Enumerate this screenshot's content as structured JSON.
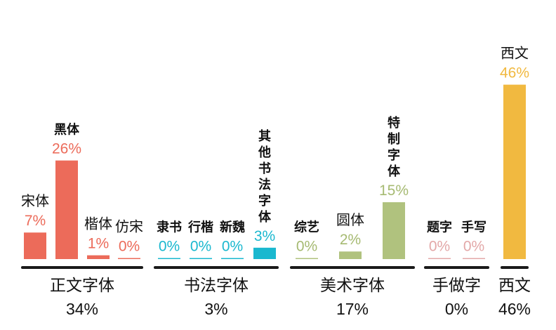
{
  "chart_data": {
    "type": "bar",
    "unit": "%",
    "groups": [
      {
        "name": "正文字体",
        "total": "34%",
        "color": "#ec6b5a",
        "label_color": "#ec6b5a",
        "items": [
          {
            "name": "宋体",
            "value": 7,
            "label": "7%"
          },
          {
            "name": "黑体",
            "value": 26,
            "label": "26%"
          },
          {
            "name": "楷体",
            "value": 1,
            "label": "1%"
          },
          {
            "name": "仿宋",
            "value": 0,
            "label": "0%"
          }
        ]
      },
      {
        "name": "书法字体",
        "total": "3%",
        "color": "#1ab8cf",
        "label_color": "#1ab8cf",
        "items": [
          {
            "name": "隶书",
            "value": 0,
            "label": "0%"
          },
          {
            "name": "行楷",
            "value": 0,
            "label": "0%"
          },
          {
            "name": "新魏",
            "value": 0,
            "label": "0%"
          },
          {
            "name": "其他书法字体",
            "value": 3,
            "label": "3%"
          }
        ]
      },
      {
        "name": "美术字体",
        "total": "17%",
        "color": "#b0c27e",
        "label_color": "#a6ba72",
        "items": [
          {
            "name": "综艺",
            "value": 0,
            "label": "0%"
          },
          {
            "name": "圆体",
            "value": 2,
            "label": "2%"
          },
          {
            "name": "特制字体",
            "value": 15,
            "label": "15%"
          }
        ]
      },
      {
        "name": "手做字",
        "total": "0%",
        "color": "#e3a8a8",
        "label_color": "#e3a8a8",
        "items": [
          {
            "name": "题字",
            "value": 0,
            "label": "0%"
          },
          {
            "name": "手写",
            "value": 0,
            "label": "0%"
          }
        ]
      },
      {
        "name": "西文",
        "total": "46%",
        "color": "#f1b940",
        "label_color": "#f1b940",
        "items": [
          {
            "name": "西文",
            "value": 46,
            "label": "46%"
          }
        ]
      }
    ]
  }
}
